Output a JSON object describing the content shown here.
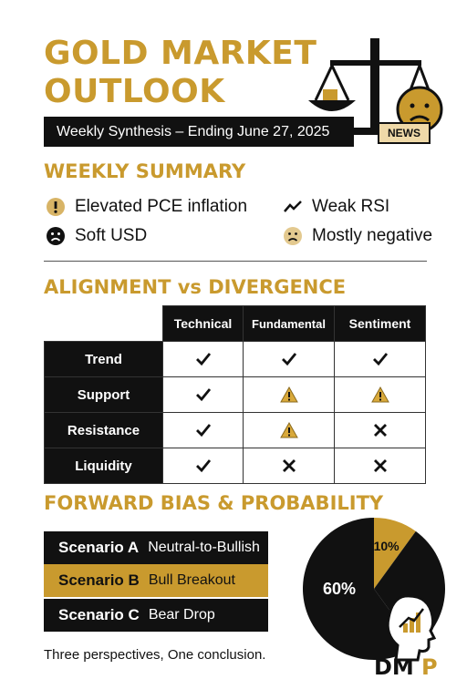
{
  "header": {
    "title_line1": "GOLD MARKET",
    "title_line2": "OUTLOOK",
    "subtitle": "Weekly Synthesis – Ending June 27, 2025",
    "news_tag": "NEWS"
  },
  "summary": {
    "heading": "WEEKLY SUMMARY",
    "items": [
      {
        "label": "Elevated PCE inflation",
        "icon": "exclamation-circle-icon"
      },
      {
        "label": "Weak RSI",
        "icon": "trend-line-icon"
      },
      {
        "label": "Soft USD",
        "icon": "frown-face-icon"
      },
      {
        "label": "Mostly negative",
        "icon": "sad-face-icon"
      }
    ]
  },
  "matrix": {
    "heading": "ALIGNMENT vs DIVERGENCE",
    "columns": [
      "Technical",
      "Fundamental",
      "Sentiment"
    ],
    "rows": [
      {
        "label": "Trend",
        "cells": [
          "check",
          "check",
          "check"
        ]
      },
      {
        "label": "Support",
        "cells": [
          "check",
          "warning",
          "warning"
        ]
      },
      {
        "label": "Resistance",
        "cells": [
          "check",
          "warning",
          "cross"
        ]
      },
      {
        "label": "Liquidity",
        "cells": [
          "check",
          "cross",
          "cross"
        ]
      }
    ]
  },
  "forward": {
    "heading": "FORWARD BIAS & PROBABILITY",
    "scenarios": [
      {
        "name": "Scenario A",
        "desc": "Neutral-to-Bullish"
      },
      {
        "name": "Scenario B",
        "desc": "Bull Breakout"
      },
      {
        "name": "Scenario C",
        "desc": "Bear Drop"
      }
    ]
  },
  "chart_data": {
    "type": "pie",
    "slices": [
      {
        "label": "60%",
        "value": 60,
        "color": "#111111"
      },
      {
        "label": "10%",
        "value": 10,
        "color": "#c99a2e"
      },
      {
        "label": "",
        "value": 30,
        "color": "#111111"
      }
    ]
  },
  "footer": {
    "tagline": "Three perspectives, One conclusion.",
    "logo_text": "DMP"
  },
  "colors": {
    "gold": "#c99a2e",
    "black": "#111111",
    "white": "#ffffff"
  }
}
